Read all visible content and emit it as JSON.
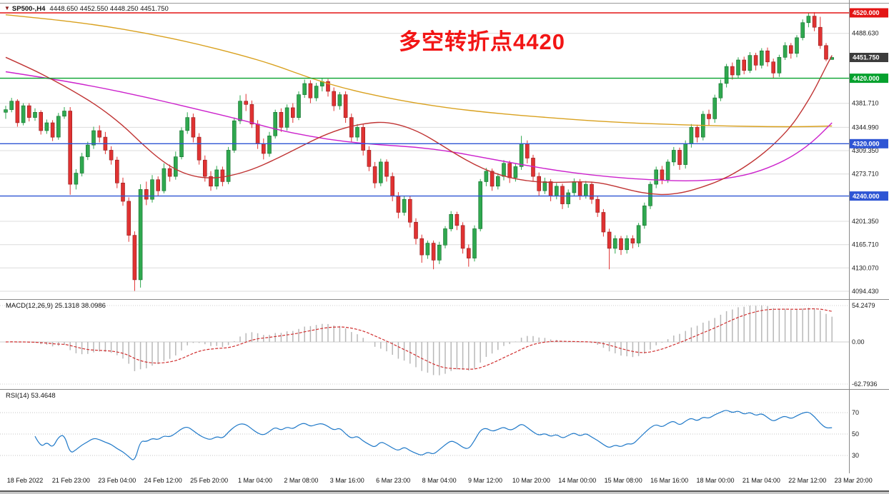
{
  "header": {
    "marker": "▼",
    "symbol": "SP500-,H4",
    "ohlc": "4448.650 4452.550 4448.250 4451.750"
  },
  "annotation": {
    "text": "多空转折点4420"
  },
  "chart_data": {
    "type": "candlestick",
    "symbol": "SP500-",
    "timeframe": "H4",
    "current": {
      "open": 4448.65,
      "high": 4452.55,
      "low": 4448.25,
      "close": 4451.75
    },
    "style": {
      "up": "#2fa84f",
      "up_dark": "#166e2e",
      "down": "#e03232",
      "down_dark": "#8f1d1d",
      "grid": "#dcdcdc",
      "macd_hist": "#b8b8b8",
      "macd_signal": "#d03030",
      "rsi_line": "#1e78c8"
    },
    "y_axis": {
      "grid": [
        {
          "v": 4488.63,
          "label": "4488.630"
        },
        {
          "v": 4381.71,
          "label": "4381.710"
        },
        {
          "v": 4344.99,
          "label": "4344.990"
        },
        {
          "v": 4309.35,
          "label": "4309.350"
        },
        {
          "v": 4273.71,
          "label": "4273.710"
        },
        {
          "v": 4201.35,
          "label": "4201.350"
        },
        {
          "v": 4165.71,
          "label": "4165.710"
        },
        {
          "v": 4130.07,
          "label": "4130.070"
        },
        {
          "v": 4094.43,
          "label": "4094.430"
        }
      ],
      "badges": [
        {
          "price": 4520.0,
          "label": "4520.000",
          "color": "#e31515",
          "line": true
        },
        {
          "price": 4451.75,
          "label": "4451.750",
          "color": "#3c3c3c",
          "line": false
        },
        {
          "price": 4420.0,
          "label": "4420.000",
          "color": "#06a12e",
          "line": true
        },
        {
          "price": 4320.0,
          "label": "4320.000",
          "color": "#2e55d4",
          "line": true
        },
        {
          "price": 4240.0,
          "label": "4240.000",
          "color": "#2e55d4",
          "line": true
        }
      ]
    },
    "x_axis": {
      "labels": [
        "18 Feb 2022",
        "21 Feb 23:00",
        "23 Feb 04:00",
        "24 Feb 12:00",
        "25 Feb 20:00",
        "1 Mar 04:00",
        "2 Mar 08:00",
        "3 Mar 16:00",
        "6 Mar 23:00",
        "8 Mar 04:00",
        "9 Mar 12:00",
        "10 Mar 20:00",
        "14 Mar 00:00",
        "15 Mar 08:00",
        "16 Mar 16:00",
        "18 Mar 00:00",
        "21 Mar 04:00",
        "22 Mar 12:00",
        "23 Mar 20:00"
      ]
    },
    "candles": [
      [
        4368,
        4378,
        4358,
        4372
      ],
      [
        4372,
        4390,
        4368,
        4385
      ],
      [
        4385,
        4388,
        4346,
        4352
      ],
      [
        4352,
        4382,
        4348,
        4378
      ],
      [
        4378,
        4382,
        4354,
        4360
      ],
      [
        4360,
        4374,
        4355,
        4368
      ],
      [
        4368,
        4371,
        4334,
        4340
      ],
      [
        4340,
        4357,
        4335,
        4352
      ],
      [
        4352,
        4356,
        4324,
        4330
      ],
      [
        4330,
        4367,
        4326,
        4362
      ],
      [
        4362,
        4376,
        4358,
        4370
      ],
      [
        4370,
        4376,
        4242,
        4258
      ],
      [
        4258,
        4281,
        4250,
        4275
      ],
      [
        4275,
        4306,
        4270,
        4300
      ],
      [
        4300,
        4323,
        4295,
        4318
      ],
      [
        4318,
        4346,
        4312,
        4340
      ],
      [
        4340,
        4348,
        4322,
        4330
      ],
      [
        4330,
        4338,
        4304,
        4310
      ],
      [
        4310,
        4316,
        4288,
        4295
      ],
      [
        4295,
        4300,
        4252,
        4260
      ],
      [
        4260,
        4268,
        4225,
        4232
      ],
      [
        4232,
        4238,
        4170,
        4180
      ],
      [
        4180,
        4186,
        4095,
        4112
      ],
      [
        4112,
        4258,
        4100,
        4250
      ],
      [
        4250,
        4262,
        4226,
        4235
      ],
      [
        4235,
        4272,
        4230,
        4265
      ],
      [
        4265,
        4270,
        4240,
        4248
      ],
      [
        4248,
        4290,
        4244,
        4282
      ],
      [
        4282,
        4288,
        4262,
        4270
      ],
      [
        4270,
        4308,
        4265,
        4300
      ],
      [
        4300,
        4345,
        4296,
        4340
      ],
      [
        4340,
        4368,
        4335,
        4360
      ],
      [
        4360,
        4366,
        4322,
        4330
      ],
      [
        4330,
        4336,
        4288,
        4295
      ],
      [
        4295,
        4302,
        4262,
        4270
      ],
      [
        4270,
        4278,
        4248,
        4255
      ],
      [
        4255,
        4286,
        4250,
        4280
      ],
      [
        4280,
        4285,
        4255,
        4262
      ],
      [
        4262,
        4315,
        4258,
        4310
      ],
      [
        4310,
        4360,
        4306,
        4355
      ],
      [
        4355,
        4394,
        4350,
        4385
      ],
      [
        4385,
        4396,
        4370,
        4380
      ],
      [
        4380,
        4386,
        4344,
        4350
      ],
      [
        4350,
        4356,
        4312,
        4320
      ],
      [
        4320,
        4328,
        4296,
        4305
      ],
      [
        4305,
        4338,
        4300,
        4332
      ],
      [
        4332,
        4372,
        4328,
        4368
      ],
      [
        4368,
        4374,
        4338,
        4345
      ],
      [
        4345,
        4380,
        4340,
        4375
      ],
      [
        4375,
        4382,
        4352,
        4360
      ],
      [
        4360,
        4400,
        4356,
        4395
      ],
      [
        4395,
        4418,
        4390,
        4412
      ],
      [
        4412,
        4417,
        4382,
        4390
      ],
      [
        4390,
        4413,
        4385,
        4408
      ],
      [
        4408,
        4420,
        4400,
        4415
      ],
      [
        4415,
        4419,
        4392,
        4400
      ],
      [
        4400,
        4406,
        4370,
        4378
      ],
      [
        4378,
        4399,
        4372,
        4395
      ],
      [
        4395,
        4400,
        4352,
        4360
      ],
      [
        4360,
        4366,
        4322,
        4330
      ],
      [
        4330,
        4350,
        4324,
        4345
      ],
      [
        4345,
        4350,
        4302,
        4310
      ],
      [
        4310,
        4316,
        4278,
        4285
      ],
      [
        4285,
        4292,
        4252,
        4260
      ],
      [
        4260,
        4297,
        4255,
        4292
      ],
      [
        4292,
        4296,
        4262,
        4270
      ],
      [
        4270,
        4276,
        4232,
        4240
      ],
      [
        4240,
        4246,
        4206,
        4215
      ],
      [
        4215,
        4240,
        4210,
        4235
      ],
      [
        4235,
        4240,
        4192,
        4200
      ],
      [
        4200,
        4206,
        4166,
        4175
      ],
      [
        4175,
        4181,
        4138,
        4150
      ],
      [
        4150,
        4172,
        4144,
        4168
      ],
      [
        4168,
        4172,
        4128,
        4142
      ],
      [
        4142,
        4170,
        4136,
        4165
      ],
      [
        4165,
        4194,
        4160,
        4190
      ],
      [
        4190,
        4217,
        4186,
        4212
      ],
      [
        4212,
        4216,
        4188,
        4195
      ],
      [
        4195,
        4200,
        4152,
        4160
      ],
      [
        4160,
        4166,
        4132,
        4145
      ],
      [
        4145,
        4195,
        4140,
        4190
      ],
      [
        4190,
        4266,
        4186,
        4262
      ],
      [
        4262,
        4283,
        4255,
        4278
      ],
      [
        4278,
        4282,
        4248,
        4255
      ],
      [
        4255,
        4275,
        4250,
        4270
      ],
      [
        4270,
        4295,
        4264,
        4290
      ],
      [
        4290,
        4294,
        4260,
        4268
      ],
      [
        4268,
        4290,
        4262,
        4285
      ],
      [
        4285,
        4332,
        4280,
        4320
      ],
      [
        4320,
        4325,
        4290,
        4298
      ],
      [
        4298,
        4303,
        4262,
        4270
      ],
      [
        4270,
        4276,
        4240,
        4248
      ],
      [
        4248,
        4268,
        4243,
        4262
      ],
      [
        4262,
        4266,
        4232,
        4240
      ],
      [
        4240,
        4260,
        4235,
        4255
      ],
      [
        4255,
        4259,
        4220,
        4228
      ],
      [
        4228,
        4250,
        4222,
        4245
      ],
      [
        4245,
        4267,
        4240,
        4262
      ],
      [
        4262,
        4266,
        4234,
        4240
      ],
      [
        4240,
        4263,
        4236,
        4258
      ],
      [
        4258,
        4262,
        4228,
        4235
      ],
      [
        4235,
        4240,
        4208,
        4215
      ],
      [
        4215,
        4220,
        4178,
        4185
      ],
      [
        4185,
        4190,
        4128,
        4160
      ],
      [
        4160,
        4180,
        4152,
        4175
      ],
      [
        4175,
        4179,
        4150,
        4158
      ],
      [
        4158,
        4180,
        4152,
        4175
      ],
      [
        4175,
        4180,
        4160,
        4168
      ],
      [
        4168,
        4199,
        4162,
        4195
      ],
      [
        4195,
        4230,
        4190,
        4225
      ],
      [
        4225,
        4262,
        4220,
        4258
      ],
      [
        4258,
        4285,
        4252,
        4280
      ],
      [
        4280,
        4286,
        4258,
        4265
      ],
      [
        4265,
        4296,
        4260,
        4292
      ],
      [
        4292,
        4315,
        4286,
        4310
      ],
      [
        4310,
        4314,
        4280,
        4288
      ],
      [
        4288,
        4325,
        4282,
        4320
      ],
      [
        4320,
        4350,
        4314,
        4345
      ],
      [
        4345,
        4349,
        4322,
        4330
      ],
      [
        4330,
        4370,
        4325,
        4365
      ],
      [
        4365,
        4372,
        4348,
        4358
      ],
      [
        4358,
        4395,
        4352,
        4390
      ],
      [
        4390,
        4418,
        4385,
        4412
      ],
      [
        4412,
        4442,
        4406,
        4438
      ],
      [
        4438,
        4444,
        4418,
        4425
      ],
      [
        4425,
        4452,
        4420,
        4448
      ],
      [
        4448,
        4453,
        4426,
        4432
      ],
      [
        4432,
        4460,
        4428,
        4455
      ],
      [
        4455,
        4459,
        4432,
        4440
      ],
      [
        4440,
        4466,
        4435,
        4462
      ],
      [
        4462,
        4467,
        4438,
        4445
      ],
      [
        4445,
        4450,
        4420,
        4428
      ],
      [
        4428,
        4456,
        4422,
        4452
      ],
      [
        4452,
        4475,
        4448,
        4470
      ],
      [
        4470,
        4474,
        4450,
        4458
      ],
      [
        4458,
        4486,
        4452,
        4482
      ],
      [
        4482,
        4510,
        4478,
        4505
      ],
      [
        4505,
        4520,
        4498,
        4515
      ],
      [
        4515,
        4521,
        4492,
        4498
      ],
      [
        4498,
        4514,
        4465,
        4470
      ],
      [
        4470,
        4474,
        4446,
        4449
      ],
      [
        4448.65,
        4452.55,
        4448.25,
        4451.75
      ]
    ],
    "overlays": [
      {
        "name": "ma-slow",
        "color": "#d9a11f",
        "points": [
          [
            0,
            4517
          ],
          [
            8,
            4510
          ],
          [
            16,
            4501
          ],
          [
            24,
            4489
          ],
          [
            32,
            4474
          ],
          [
            40,
            4456
          ],
          [
            46,
            4440
          ],
          [
            52,
            4420
          ],
          [
            58,
            4404
          ],
          [
            64,
            4392
          ],
          [
            70,
            4382
          ],
          [
            76,
            4374
          ],
          [
            82,
            4368
          ],
          [
            88,
            4363
          ],
          [
            94,
            4359
          ],
          [
            100,
            4355
          ],
          [
            106,
            4352
          ],
          [
            112,
            4350
          ],
          [
            118,
            4348
          ],
          [
            124,
            4347
          ],
          [
            130,
            4346
          ],
          [
            136,
            4346
          ],
          [
            141,
            4347
          ]
        ]
      },
      {
        "name": "ma-mid",
        "color": "#cc22cc",
        "points": [
          [
            0,
            4430
          ],
          [
            8,
            4419
          ],
          [
            16,
            4406
          ],
          [
            24,
            4391
          ],
          [
            32,
            4374
          ],
          [
            40,
            4357
          ],
          [
            46,
            4342
          ],
          [
            52,
            4331
          ],
          [
            58,
            4323
          ],
          [
            64,
            4318
          ],
          [
            70,
            4315
          ],
          [
            76,
            4308
          ],
          [
            82,
            4298
          ],
          [
            88,
            4288
          ],
          [
            94,
            4279
          ],
          [
            100,
            4272
          ],
          [
            106,
            4267
          ],
          [
            112,
            4264
          ],
          [
            116,
            4263
          ],
          [
            120,
            4264
          ],
          [
            124,
            4268
          ],
          [
            128,
            4276
          ],
          [
            132,
            4290
          ],
          [
            135,
            4305
          ],
          [
            138,
            4325
          ],
          [
            141,
            4352
          ]
        ]
      },
      {
        "name": "ma-fast",
        "color": "#c03434",
        "points": [
          [
            0,
            4452
          ],
          [
            4,
            4436
          ],
          [
            8,
            4418
          ],
          [
            12,
            4398
          ],
          [
            16,
            4376
          ],
          [
            20,
            4348
          ],
          [
            23,
            4322
          ],
          [
            26,
            4298
          ],
          [
            29,
            4280
          ],
          [
            32,
            4270
          ],
          [
            35,
            4267
          ],
          [
            38,
            4270
          ],
          [
            42,
            4280
          ],
          [
            46,
            4296
          ],
          [
            50,
            4314
          ],
          [
            54,
            4332
          ],
          [
            58,
            4345
          ],
          [
            62,
            4352
          ],
          [
            65,
            4353
          ],
          [
            68,
            4347
          ],
          [
            71,
            4336
          ],
          [
            74,
            4320
          ],
          [
            77,
            4303
          ],
          [
            80,
            4288
          ],
          [
            83,
            4276
          ],
          [
            86,
            4268
          ],
          [
            89,
            4263
          ],
          [
            92,
            4261
          ],
          [
            95,
            4261
          ],
          [
            98,
            4262
          ],
          [
            101,
            4261
          ],
          [
            104,
            4255
          ],
          [
            107,
            4248
          ],
          [
            110,
            4243
          ],
          [
            113,
            4242
          ],
          [
            116,
            4246
          ],
          [
            119,
            4254
          ],
          [
            122,
            4264
          ],
          [
            125,
            4278
          ],
          [
            128,
            4296
          ],
          [
            131,
            4318
          ],
          [
            134,
            4346
          ],
          [
            136,
            4372
          ],
          [
            138,
            4402
          ],
          [
            140,
            4438
          ],
          [
            141,
            4455
          ]
        ]
      }
    ],
    "indicators": {
      "macd": {
        "label": "MACD(12,26,9)",
        "values": "25.1318 38.0986",
        "params": [
          12,
          26,
          9
        ],
        "axis_labels": [
          "54.2479",
          "0.00",
          "-62.7936"
        ],
        "axis_values": [
          54.2479,
          0,
          -62.7936
        ]
      },
      "rsi": {
        "label": "RSI(14)",
        "value": "53.4648",
        "period": 14,
        "levels": [
          70,
          50,
          30
        ]
      }
    }
  }
}
